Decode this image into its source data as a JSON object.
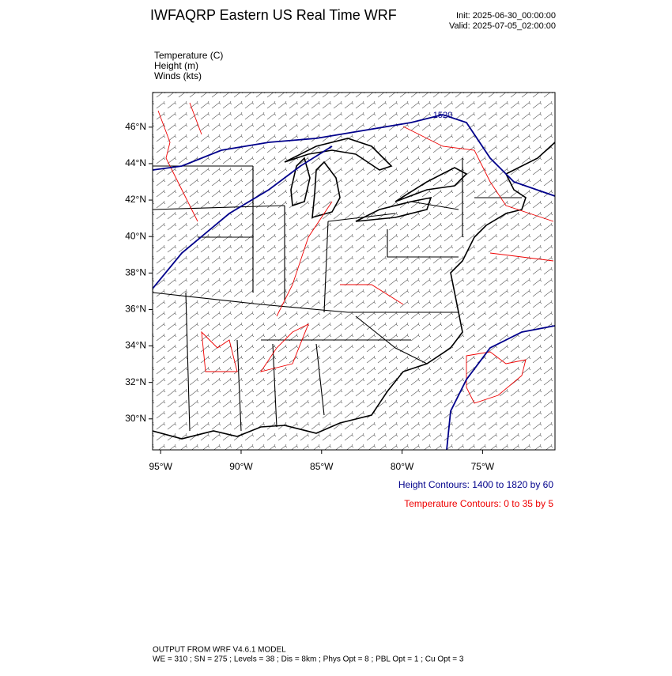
{
  "map": {
    "title": "IWFAQRP Eastern US Real Time WRF",
    "init": "Init: 2025-06-30_00:00:00",
    "valid": "Valid: 2025-07-05_02:00:00",
    "fields": [
      "Temperature   (C)",
      "Height   (m)",
      "Winds   (kts)"
    ],
    "xlim": [
      -95.5,
      -70.5
    ],
    "ylim": [
      28.3,
      47.9
    ],
    "xticks": [
      {
        "value": -95,
        "label": "95°W"
      },
      {
        "value": -90,
        "label": "90°W"
      },
      {
        "value": -85,
        "label": "85°W"
      },
      {
        "value": -80,
        "label": "80°W"
      },
      {
        "value": -75,
        "label": "75°W"
      }
    ],
    "yticks": [
      {
        "value": 30,
        "label": "30°N"
      },
      {
        "value": 32,
        "label": "32°N"
      },
      {
        "value": 34,
        "label": "34°N"
      },
      {
        "value": 36,
        "label": "36°N"
      },
      {
        "value": 38,
        "label": "38°N"
      },
      {
        "value": 40,
        "label": "40°N"
      },
      {
        "value": 42,
        "label": "42°N"
      },
      {
        "value": 44,
        "label": "44°N"
      },
      {
        "value": 46,
        "label": "46°N"
      }
    ],
    "contour_label": "1520",
    "height_legend": "Height Contours: 1400 to 1820 by 60",
    "temp_legend": "Temperature Contours: 0 to 35 by 5",
    "footer": [
      "OUTPUT FROM WRF V4.6.1 MODEL",
      "WE = 310 ; SN = 275 ; Levels = 38 ; Dis = 8km ; Phys Opt = 8 ; PBL Opt = 1 ; Cu Opt = 3"
    ]
  }
}
